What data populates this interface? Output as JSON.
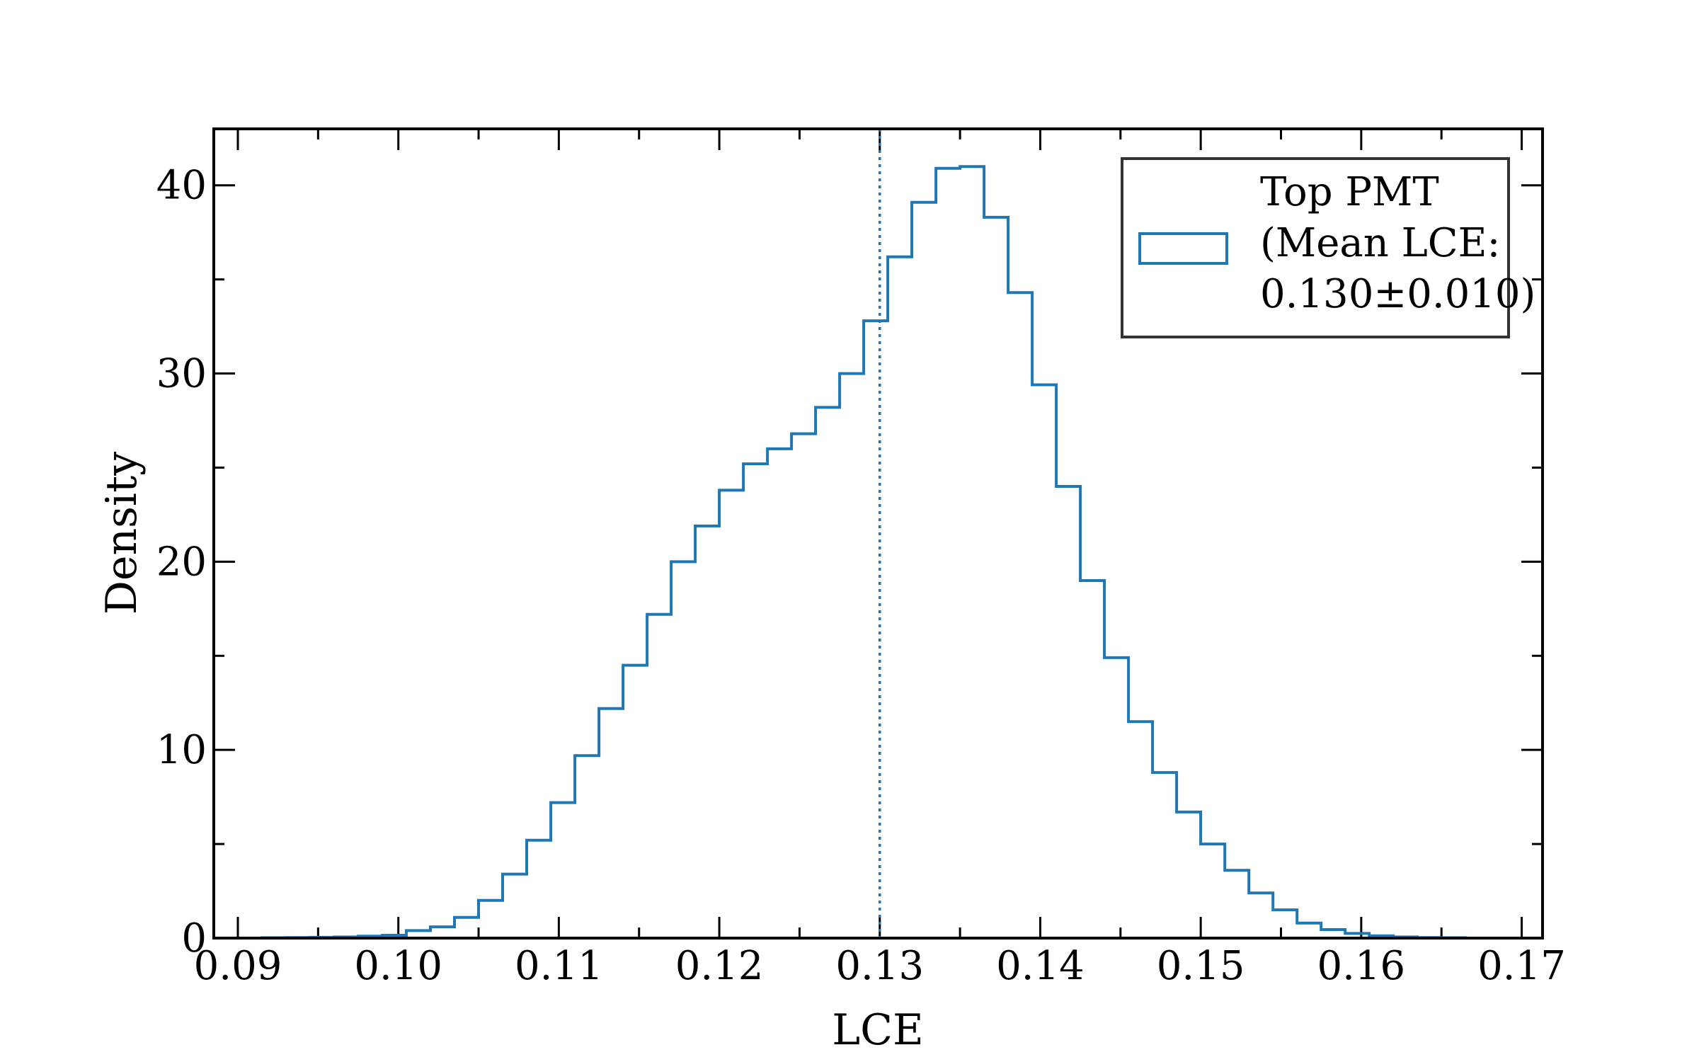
{
  "chart_data": {
    "type": "histogram",
    "xlabel": "LCE",
    "ylabel": "Density",
    "xlim": [
      0.0885,
      0.1713
    ],
    "ylim": [
      0,
      43
    ],
    "xticks": [
      "0.09",
      "0.10",
      "0.11",
      "0.12",
      "0.13",
      "0.14",
      "0.15",
      "0.16",
      "0.17"
    ],
    "xtick_values": [
      0.09,
      0.1,
      0.11,
      0.12,
      0.13,
      0.14,
      0.15,
      0.16,
      0.17
    ],
    "yticks": [
      "0",
      "10",
      "20",
      "30",
      "40"
    ],
    "ytick_values": [
      0,
      10,
      20,
      30,
      40
    ],
    "bin_edges": [
      0.09,
      0.0915,
      0.093,
      0.0945,
      0.096,
      0.0975,
      0.099,
      0.1005,
      0.102,
      0.1035,
      0.105,
      0.1065,
      0.108,
      0.1095,
      0.111,
      0.1125,
      0.114,
      0.1155,
      0.117,
      0.1185,
      0.12,
      0.1215,
      0.123,
      0.1245,
      0.126,
      0.1275,
      0.129,
      0.1305,
      0.132,
      0.1335,
      0.135,
      0.1365,
      0.138,
      0.1395,
      0.141,
      0.1425,
      0.144,
      0.1455,
      0.147,
      0.1485,
      0.15,
      0.1515,
      0.153,
      0.1545,
      0.156,
      0.1575,
      0.159,
      0.1605,
      0.162,
      0.1635,
      0.165,
      0.1665,
      0.168
    ],
    "values": [
      0.0,
      0.02,
      0.03,
      0.04,
      0.06,
      0.1,
      0.15,
      0.4,
      0.6,
      1.1,
      2.0,
      3.4,
      5.2,
      7.2,
      9.7,
      12.2,
      14.5,
      17.2,
      20.0,
      21.9,
      23.8,
      25.2,
      26.0,
      26.8,
      28.2,
      30.0,
      32.8,
      36.2,
      39.1,
      40.9,
      41.0,
      38.3,
      34.3,
      29.4,
      24.0,
      19.0,
      14.9,
      11.5,
      8.8,
      6.7,
      5.0,
      3.6,
      2.4,
      1.5,
      0.8,
      0.45,
      0.25,
      0.12,
      0.06,
      0.03,
      0.02,
      0.0
    ],
    "mean_line_x": 0.13,
    "series_color": "#1f77b4",
    "legend": {
      "position": "top-right",
      "lines": [
        "Top PMT",
        "(Mean LCE:",
        "0.130±0.010)"
      ]
    }
  }
}
